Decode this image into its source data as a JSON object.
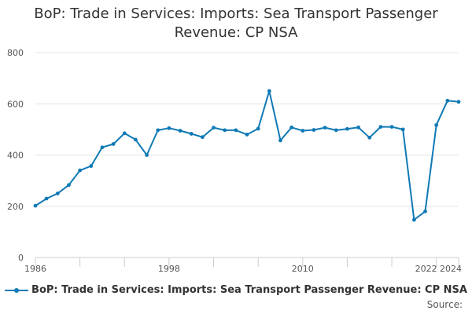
{
  "chart_title": "BoP: Trade in Services: Imports: Sea Transport Passenger Revenue: CP NSA",
  "source_label": "Source:",
  "chart_data": {
    "type": "line",
    "title": "BoP: Trade in Services: Imports: Sea Transport Passenger Revenue: CP NSA",
    "xlabel": "",
    "ylabel": "",
    "x": [
      1986,
      1987,
      1988,
      1989,
      1990,
      1991,
      1992,
      1993,
      1994,
      1995,
      1996,
      1997,
      1998,
      1999,
      2000,
      2001,
      2002,
      2003,
      2004,
      2005,
      2006,
      2007,
      2008,
      2009,
      2010,
      2011,
      2012,
      2013,
      2014,
      2015,
      2016,
      2017,
      2018,
      2019,
      2020,
      2021,
      2022,
      2023,
      2024
    ],
    "series": [
      {
        "name": "BoP: Trade in Services: Imports: Sea Transport Passenger Revenue: CP NSA",
        "values": [
          202,
          230,
          250,
          283,
          340,
          357,
          430,
          443,
          485,
          460,
          400,
          497,
          505,
          495,
          483,
          470,
          507,
          497,
          497,
          480,
          503,
          650,
          457,
          508,
          495,
          498,
          507,
          497,
          502,
          508,
          468,
          510,
          510,
          500,
          147,
          180,
          517,
          612,
          608
        ]
      }
    ],
    "x_ticks": [
      "1986",
      "1998",
      "2010",
      "2022",
      "2024"
    ],
    "y_ticks": [
      "0",
      "200",
      "400",
      "600",
      "800"
    ],
    "ylim": [
      0,
      800
    ],
    "xlim": [
      1986,
      2024
    ],
    "grid": true,
    "legend": "bottom",
    "color": "#0f7ab5"
  }
}
